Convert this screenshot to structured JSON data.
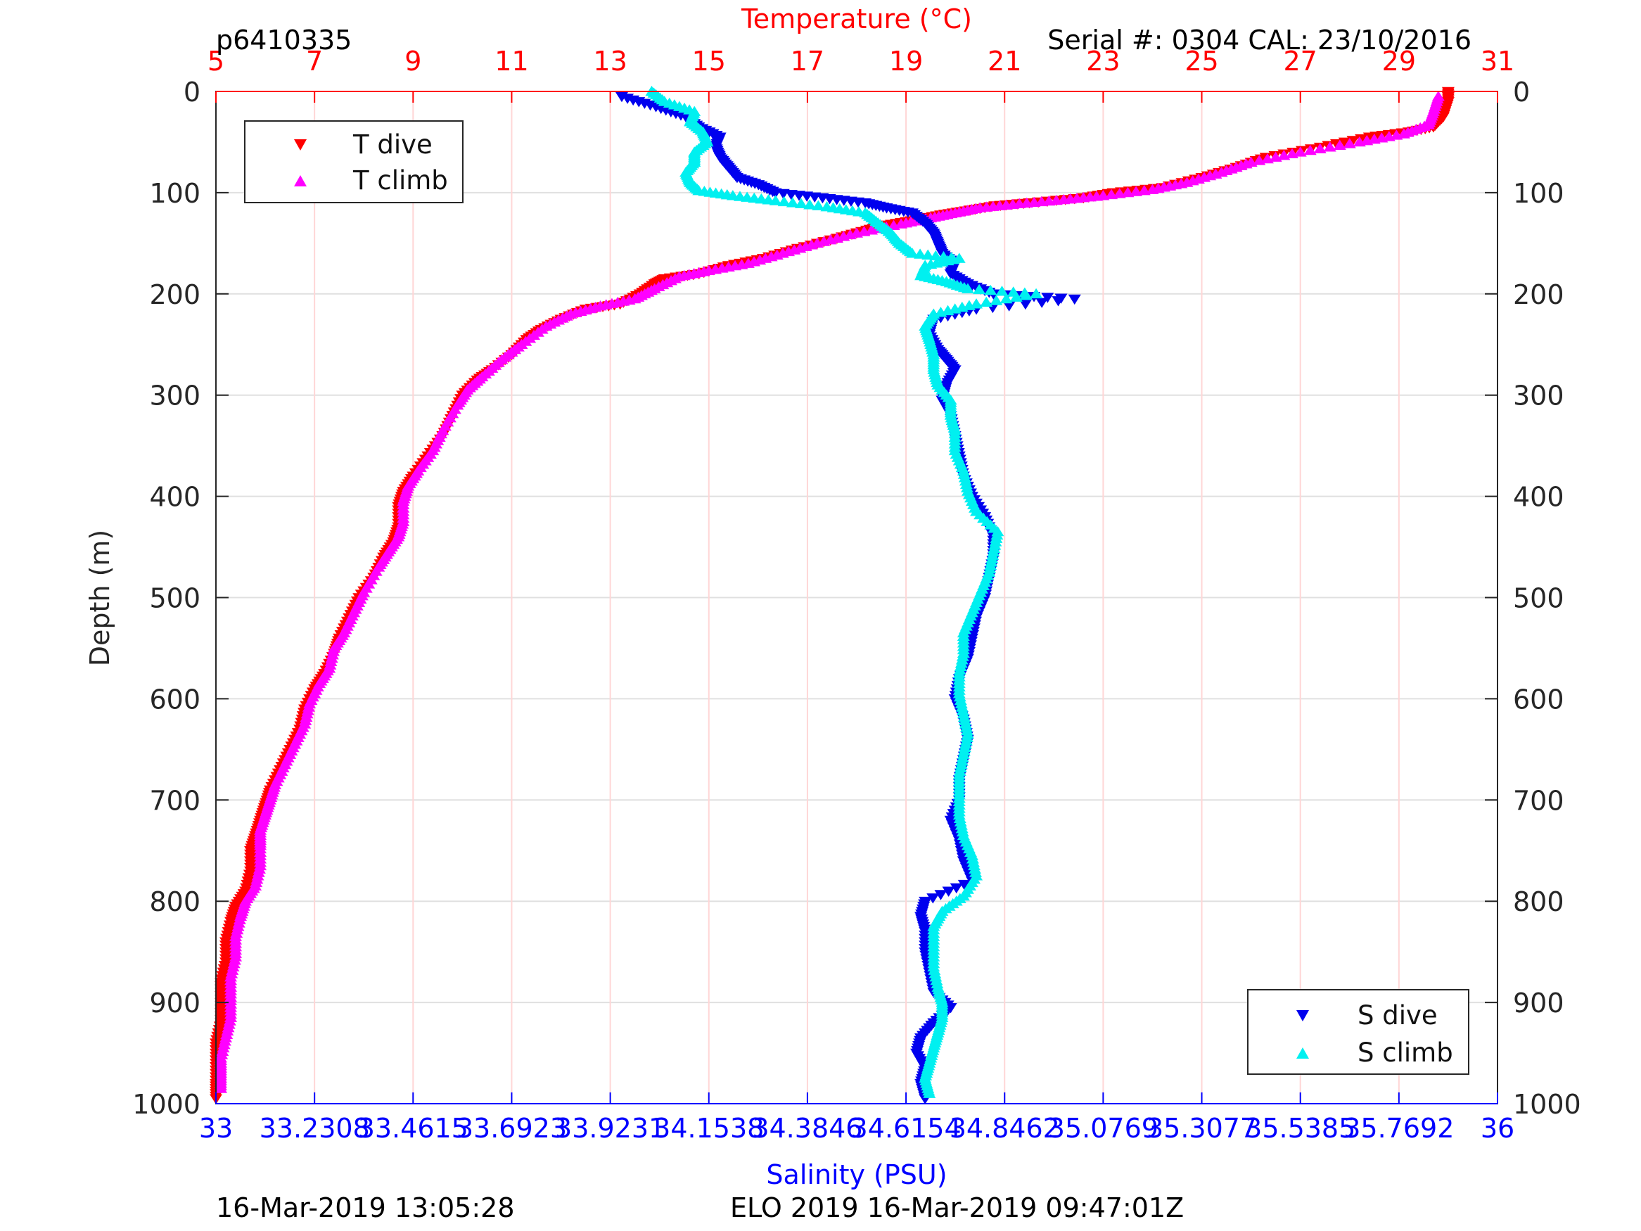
{
  "header": {
    "profile_id": "p6410335",
    "serial_info": "Serial #: 0304  CAL: 23/10/2016"
  },
  "footer": {
    "left_timestamp": "16-Mar-2019 13:05:28",
    "center_text": "ELO 2019 16-Mar-2019 09:47:01Z"
  },
  "colors": {
    "t_dive": "#ff0000",
    "t_climb": "#ff00ff",
    "s_dive": "#0000ee",
    "s_climb": "#00f0f0",
    "temp_axis": "#ff0000",
    "sal_axis": "#0000ff",
    "grid_temp": "#ffd6d6",
    "grid_depth": "#e0e0e0"
  },
  "chart_data": {
    "type": "scatter",
    "y_axis": {
      "label": "Depth (m)",
      "range": [
        0,
        1000
      ],
      "reversed": true,
      "ticks": [
        "0",
        "100",
        "200",
        "300",
        "400",
        "500",
        "600",
        "700",
        "800",
        "900",
        "1000"
      ]
    },
    "x_top": {
      "label": "Temperature (°C)",
      "range": [
        5,
        31
      ],
      "ticks": [
        "5",
        "7",
        "9",
        "11",
        "13",
        "15",
        "17",
        "19",
        "21",
        "23",
        "25",
        "27",
        "29",
        "31"
      ]
    },
    "x_bottom": {
      "label": "Salinity (PSU)",
      "range": [
        33,
        36
      ],
      "ticks": [
        "33",
        "33.2308",
        "33.4615",
        "33.6923",
        "33.9231",
        "34.1538",
        "34.3846",
        "34.6154",
        "34.8462",
        "35.0769",
        "35.3077",
        "35.5385",
        "35.7692",
        "36"
      ]
    },
    "grid": true,
    "legends": [
      {
        "placement": "top-left",
        "entries": [
          "T dive",
          "T climb"
        ]
      },
      {
        "placement": "bottom-right",
        "entries": [
          "S dive",
          "S climb"
        ]
      }
    ],
    "series": [
      {
        "name": "T dive",
        "axis": "temperature",
        "marker": "triangle-down",
        "points": [
          [
            30.0,
            0
          ],
          [
            30.0,
            10
          ],
          [
            29.9,
            25
          ],
          [
            29.7,
            35
          ],
          [
            29.2,
            40
          ],
          [
            28.4,
            45
          ],
          [
            27.4,
            55
          ],
          [
            26.3,
            65
          ],
          [
            25.7,
            75
          ],
          [
            25.0,
            85
          ],
          [
            24.2,
            95
          ],
          [
            23.2,
            100
          ],
          [
            22.6,
            105
          ],
          [
            21.5,
            110
          ],
          [
            20.8,
            113
          ],
          [
            20.2,
            118
          ],
          [
            19.7,
            122
          ],
          [
            19.2,
            127
          ],
          [
            18.6,
            132
          ],
          [
            18.2,
            137
          ],
          [
            17.6,
            145
          ],
          [
            16.8,
            155
          ],
          [
            16.1,
            165
          ],
          [
            15.4,
            172
          ],
          [
            14.8,
            180
          ],
          [
            14.1,
            185
          ],
          [
            13.9,
            190
          ],
          [
            13.6,
            200
          ],
          [
            13.2,
            210
          ],
          [
            12.5,
            215
          ],
          [
            12.0,
            225
          ],
          [
            11.6,
            235
          ],
          [
            11.3,
            245
          ],
          [
            11.0,
            260
          ],
          [
            10.6,
            275
          ],
          [
            10.3,
            285
          ],
          [
            10.0,
            300
          ],
          [
            9.8,
            320
          ],
          [
            9.6,
            340
          ],
          [
            9.3,
            360
          ],
          [
            9.0,
            380
          ],
          [
            8.8,
            395
          ],
          [
            8.7,
            410
          ],
          [
            8.7,
            430
          ],
          [
            8.6,
            445
          ],
          [
            8.4,
            460
          ],
          [
            8.2,
            480
          ],
          [
            7.9,
            500
          ],
          [
            7.7,
            520
          ],
          [
            7.5,
            540
          ],
          [
            7.4,
            555
          ],
          [
            7.2,
            575
          ],
          [
            7.0,
            590
          ],
          [
            6.8,
            610
          ],
          [
            6.7,
            630
          ],
          [
            6.5,
            650
          ],
          [
            6.3,
            670
          ],
          [
            6.1,
            690
          ],
          [
            6.0,
            705
          ],
          [
            5.9,
            720
          ],
          [
            5.8,
            735
          ],
          [
            5.7,
            750
          ],
          [
            5.7,
            770
          ],
          [
            5.6,
            790
          ],
          [
            5.4,
            805
          ],
          [
            5.3,
            820
          ],
          [
            5.2,
            840
          ],
          [
            5.2,
            860
          ],
          [
            5.1,
            880
          ],
          [
            5.1,
            900
          ],
          [
            5.1,
            920
          ],
          [
            5.0,
            940
          ],
          [
            5.0,
            960
          ],
          [
            5.0,
            980
          ],
          [
            5.0,
            995
          ]
        ]
      },
      {
        "name": "T climb",
        "axis": "temperature",
        "marker": "triangle-up",
        "points": [
          [
            29.8,
            5
          ],
          [
            29.7,
            20
          ],
          [
            29.6,
            33
          ],
          [
            29.1,
            42
          ],
          [
            28.2,
            50
          ],
          [
            27.0,
            60
          ],
          [
            26.0,
            70
          ],
          [
            25.4,
            80
          ],
          [
            24.7,
            90
          ],
          [
            24.0,
            97
          ],
          [
            23.0,
            103
          ],
          [
            22.2,
            107
          ],
          [
            21.3,
            111
          ],
          [
            20.5,
            115
          ],
          [
            20.0,
            120
          ],
          [
            19.5,
            125
          ],
          [
            18.9,
            131
          ],
          [
            18.0,
            140
          ],
          [
            17.2,
            150
          ],
          [
            16.5,
            160
          ],
          [
            15.8,
            170
          ],
          [
            15.0,
            177
          ],
          [
            14.4,
            183
          ],
          [
            13.9,
            195
          ],
          [
            13.5,
            205
          ],
          [
            12.8,
            212
          ],
          [
            12.2,
            220
          ],
          [
            11.7,
            232
          ],
          [
            11.2,
            250
          ],
          [
            10.8,
            265
          ],
          [
            10.4,
            282
          ],
          [
            10.1,
            295
          ],
          [
            9.9,
            310
          ],
          [
            9.6,
            335
          ],
          [
            9.4,
            355
          ],
          [
            9.1,
            375
          ],
          [
            8.9,
            390
          ],
          [
            8.8,
            405
          ],
          [
            8.8,
            425
          ],
          [
            8.7,
            440
          ],
          [
            8.5,
            455
          ],
          [
            8.3,
            470
          ],
          [
            8.0,
            495
          ],
          [
            7.8,
            515
          ],
          [
            7.6,
            535
          ],
          [
            7.4,
            550
          ],
          [
            7.3,
            570
          ],
          [
            7.1,
            585
          ],
          [
            6.9,
            605
          ],
          [
            6.8,
            625
          ],
          [
            6.6,
            645
          ],
          [
            6.4,
            665
          ],
          [
            6.2,
            685
          ],
          [
            6.1,
            700
          ],
          [
            6.0,
            715
          ],
          [
            5.9,
            730
          ],
          [
            5.9,
            745
          ],
          [
            5.9,
            765
          ],
          [
            5.8,
            785
          ],
          [
            5.6,
            800
          ],
          [
            5.5,
            815
          ],
          [
            5.4,
            835
          ],
          [
            5.4,
            855
          ],
          [
            5.3,
            875
          ],
          [
            5.3,
            895
          ],
          [
            5.3,
            915
          ],
          [
            5.2,
            935
          ],
          [
            5.1,
            955
          ],
          [
            5.1,
            970
          ],
          [
            5.1,
            985
          ]
        ]
      },
      {
        "name": "S dive",
        "axis": "salinity",
        "marker": "triangle-down",
        "points": [
          [
            33.95,
            5
          ],
          [
            34.03,
            15
          ],
          [
            34.1,
            25
          ],
          [
            34.13,
            35
          ],
          [
            34.18,
            45
          ],
          [
            34.17,
            55
          ],
          [
            34.18,
            65
          ],
          [
            34.2,
            75
          ],
          [
            34.22,
            85
          ],
          [
            34.27,
            92
          ],
          [
            34.31,
            100
          ],
          [
            34.42,
            105
          ],
          [
            34.52,
            110
          ],
          [
            34.57,
            115
          ],
          [
            34.63,
            120
          ],
          [
            34.66,
            130
          ],
          [
            34.68,
            140
          ],
          [
            34.69,
            150
          ],
          [
            34.7,
            160
          ],
          [
            34.73,
            170
          ],
          [
            34.72,
            180
          ],
          [
            34.76,
            190
          ],
          [
            34.82,
            200
          ],
          [
            35.01,
            205
          ],
          [
            34.78,
            215
          ],
          [
            34.68,
            225
          ],
          [
            34.67,
            240
          ],
          [
            34.69,
            255
          ],
          [
            34.71,
            265
          ],
          [
            34.73,
            275
          ],
          [
            34.71,
            290
          ],
          [
            34.7,
            305
          ],
          [
            34.72,
            320
          ],
          [
            34.73,
            340
          ],
          [
            34.74,
            360
          ],
          [
            34.75,
            380
          ],
          [
            34.77,
            400
          ],
          [
            34.8,
            420
          ],
          [
            34.82,
            440
          ],
          [
            34.82,
            460
          ],
          [
            34.81,
            480
          ],
          [
            34.8,
            500
          ],
          [
            34.78,
            520
          ],
          [
            34.77,
            540
          ],
          [
            34.76,
            560
          ],
          [
            34.74,
            580
          ],
          [
            34.73,
            600
          ],
          [
            34.75,
            620
          ],
          [
            34.76,
            640
          ],
          [
            34.75,
            660
          ],
          [
            34.74,
            680
          ],
          [
            34.74,
            700
          ],
          [
            34.72,
            720
          ],
          [
            34.74,
            740
          ],
          [
            34.75,
            760
          ],
          [
            34.77,
            780
          ],
          [
            34.66,
            800
          ],
          [
            34.65,
            815
          ],
          [
            34.66,
            830
          ],
          [
            34.66,
            850
          ],
          [
            34.67,
            870
          ],
          [
            34.68,
            890
          ],
          [
            34.72,
            905
          ],
          [
            34.68,
            920
          ],
          [
            34.65,
            935
          ],
          [
            34.64,
            950
          ],
          [
            34.66,
            965
          ],
          [
            34.65,
            980
          ],
          [
            34.66,
            995
          ]
        ]
      },
      {
        "name": "S climb",
        "axis": "salinity",
        "marker": "triangle-up",
        "points": [
          [
            34.02,
            0
          ],
          [
            34.05,
            10
          ],
          [
            34.12,
            20
          ],
          [
            34.11,
            30
          ],
          [
            34.14,
            40
          ],
          [
            34.15,
            50
          ],
          [
            34.12,
            60
          ],
          [
            34.12,
            70
          ],
          [
            34.1,
            80
          ],
          [
            34.11,
            90
          ],
          [
            34.13,
            98
          ],
          [
            34.21,
            103
          ],
          [
            34.31,
            108
          ],
          [
            34.43,
            114
          ],
          [
            34.52,
            120
          ],
          [
            34.55,
            130
          ],
          [
            34.58,
            140
          ],
          [
            34.6,
            150
          ],
          [
            34.63,
            160
          ],
          [
            34.74,
            165
          ],
          [
            34.66,
            172
          ],
          [
            34.65,
            182
          ],
          [
            34.71,
            188
          ],
          [
            34.76,
            195
          ],
          [
            34.92,
            200
          ],
          [
            34.78,
            210
          ],
          [
            34.68,
            220
          ],
          [
            34.66,
            232
          ],
          [
            34.67,
            245
          ],
          [
            34.68,
            260
          ],
          [
            34.68,
            275
          ],
          [
            34.69,
            290
          ],
          [
            34.72,
            305
          ],
          [
            34.72,
            320
          ],
          [
            34.73,
            335
          ],
          [
            34.73,
            355
          ],
          [
            34.75,
            375
          ],
          [
            34.76,
            395
          ],
          [
            34.78,
            415
          ],
          [
            34.83,
            435
          ],
          [
            34.82,
            455
          ],
          [
            34.81,
            475
          ],
          [
            34.79,
            495
          ],
          [
            34.77,
            515
          ],
          [
            34.75,
            535
          ],
          [
            34.75,
            555
          ],
          [
            34.74,
            575
          ],
          [
            34.74,
            595
          ],
          [
            34.75,
            615
          ],
          [
            34.76,
            635
          ],
          [
            34.75,
            655
          ],
          [
            34.74,
            675
          ],
          [
            34.74,
            695
          ],
          [
            34.74,
            715
          ],
          [
            34.75,
            735
          ],
          [
            34.77,
            755
          ],
          [
            34.78,
            775
          ],
          [
            34.75,
            795
          ],
          [
            34.7,
            810
          ],
          [
            34.68,
            825
          ],
          [
            34.68,
            845
          ],
          [
            34.68,
            865
          ],
          [
            34.69,
            885
          ],
          [
            34.7,
            900
          ],
          [
            34.7,
            915
          ],
          [
            34.69,
            930
          ],
          [
            34.68,
            945
          ],
          [
            34.67,
            960
          ],
          [
            34.66,
            975
          ],
          [
            34.67,
            990
          ]
        ]
      }
    ]
  }
}
